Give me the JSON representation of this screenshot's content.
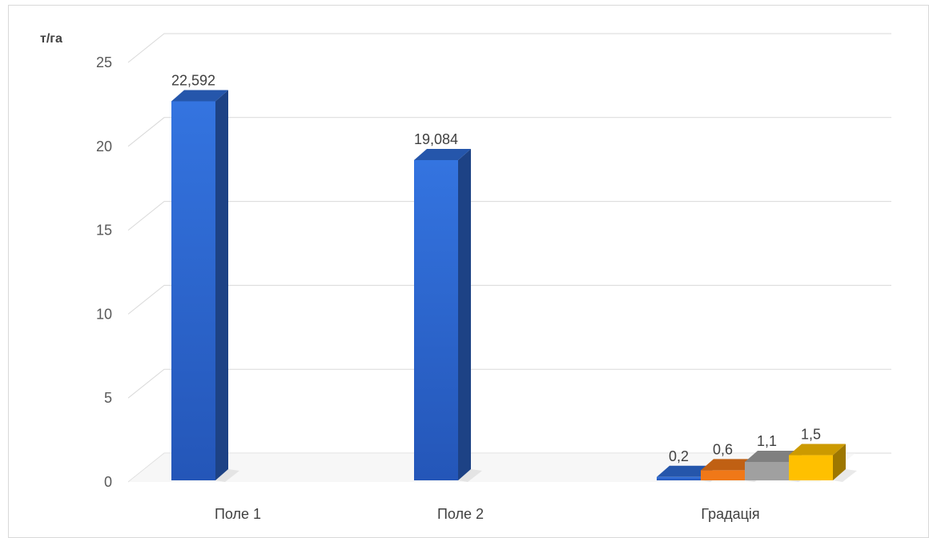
{
  "chart_data": {
    "type": "bar",
    "style": "3d-column",
    "ylabel": "т/га",
    "ylim": [
      0,
      25
    ],
    "yticks": [
      "0",
      "5",
      "10",
      "15",
      "20",
      "25"
    ],
    "grid": true,
    "legend": "none",
    "categories": [
      "Поле 1",
      "Поле 2",
      "Градація"
    ],
    "bars": [
      {
        "category": "Поле 1",
        "value": 22.592,
        "label": "22,592",
        "color": "#2e6bd6"
      },
      {
        "category": "Поле 2",
        "value": 19.084,
        "label": "19,084",
        "color": "#2e6bd6"
      },
      {
        "category": "Градація",
        "value": 0.2,
        "label": "0,2",
        "color": "#2e6bd6"
      },
      {
        "category": "Градація",
        "value": 0.6,
        "label": "0,6",
        "color": "#f07818"
      },
      {
        "category": "Градація",
        "value": 1.1,
        "label": "1,1",
        "color": "#a0a0a0"
      },
      {
        "category": "Градація",
        "value": 1.5,
        "label": "1,5",
        "color": "#ffc000"
      }
    ]
  }
}
